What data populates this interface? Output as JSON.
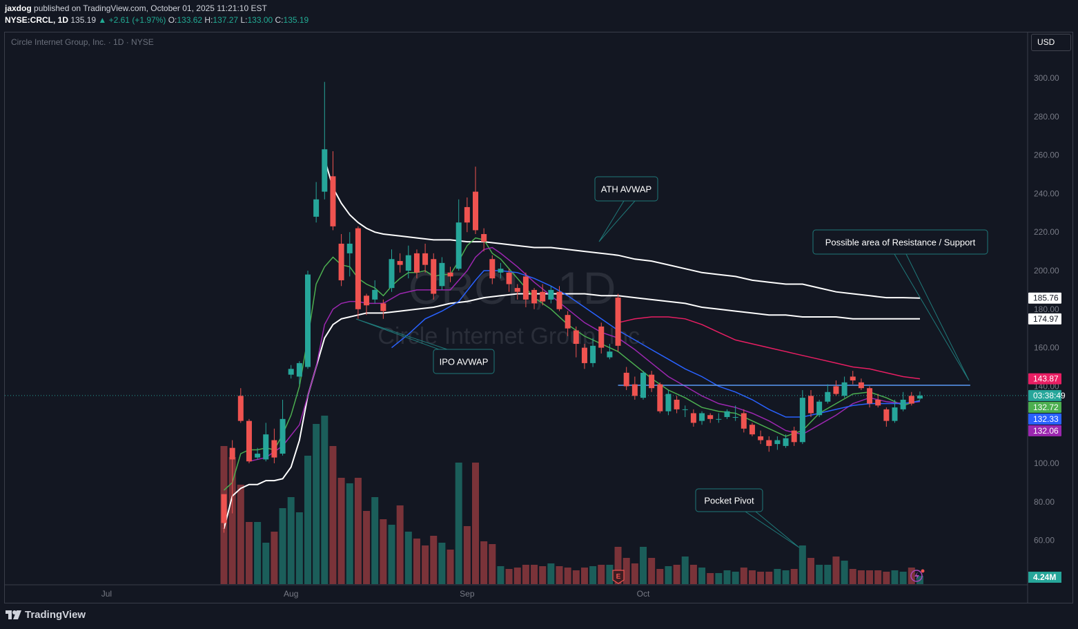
{
  "header": {
    "author": "jaxdog",
    "published_text": "published on TradingView.com, October 01, 2025 11:21:10 EST",
    "symbol": "NYSE:CRCL, 1D",
    "last": "135.19",
    "change": "▲ +2.61 (+1.97%)",
    "o_label": "O:",
    "o": "133.62",
    "h_label": "H:",
    "h": "137.27",
    "l_label": "L:",
    "l": "133.00",
    "c_label": "C:",
    "c": "135.19"
  },
  "legend": "Circle Internet Group, Inc. · 1D · NYSE",
  "currency_button": "USD",
  "watermark": {
    "symbol": "CRCL, 1D",
    "name": "Circle Internet Group, Inc."
  },
  "footer_brand": "TradingView",
  "colors": {
    "background": "#131722",
    "up": "#26a69a",
    "down": "#ef5350",
    "vol_up": "#1b5e5a",
    "vol_down": "#7a3339",
    "avwap": "#ffffff",
    "ema_green": "#4caf50",
    "ema_purple": "#9c27b0",
    "ema_blue": "#2962ff",
    "ma_red": "#e91e63",
    "resistance": "#5b9cf6"
  },
  "annotations": [
    {
      "text": "ATH AVWAP"
    },
    {
      "text": "Possible area of Resistance / Support"
    },
    {
      "text": "IPO AVWAP"
    },
    {
      "text": "Pocket Pivot"
    }
  ],
  "price_badges": [
    {
      "text": "185.76",
      "value": 185.76,
      "style": "white"
    },
    {
      "text": "174.97",
      "value": 174.97,
      "style": "white"
    },
    {
      "text": "143.87",
      "value": 143.87,
      "style": "red"
    },
    {
      "text": "03:38:49",
      "value": 135.19,
      "style": "teal"
    },
    {
      "text": "132.72",
      "value": 132.72,
      "style": "green"
    },
    {
      "text": "132.33",
      "value": 132.33,
      "style": "blue"
    },
    {
      "text": "132.06",
      "value": 132.06,
      "style": "purple"
    }
  ],
  "volume_badge": "4.24M",
  "chart_data": {
    "type": "candlestick",
    "title": "Circle Internet Group, Inc. · 1D · NYSE",
    "y_axis": {
      "ticks": [
        300,
        280,
        260,
        240,
        220,
        200,
        180,
        160,
        140,
        100,
        80,
        60
      ],
      "labels": [
        "300.00",
        "280.00",
        "260.00",
        "240.00",
        "220.00",
        "200.00",
        "180.00",
        "160.00",
        "140.00",
        "100.00",
        "80.00",
        "60.00"
      ],
      "range": [
        40,
        320
      ]
    },
    "x_axis": {
      "ticks": [
        {
          "label": "Jul",
          "index": 17
        },
        {
          "label": "Aug",
          "index": 39
        },
        {
          "label": "Sep",
          "index": 60
        },
        {
          "label": "Oct",
          "index": 81
        }
      ]
    },
    "candles": [
      [
        31,
        84.0,
        69.0,
        83.0,
        64.0,
        1.0
      ],
      [
        32,
        108.0,
        102.0,
        112.0,
        74.0,
        0.92
      ],
      [
        33,
        135.0,
        122.0,
        139.0,
        121.0,
        0.72
      ],
      [
        34,
        122.0,
        101.0,
        123.0,
        100.0,
        0.45
      ],
      [
        35,
        103.0,
        105.0,
        108.0,
        102.0,
        0.45
      ],
      [
        36,
        102.0,
        115.0,
        121.0,
        101.0,
        0.3
      ],
      [
        37,
        112.0,
        103.0,
        118.0,
        100.0,
        0.38
      ],
      [
        38,
        105.0,
        123.0,
        133.0,
        104.0,
        0.55
      ],
      [
        39,
        146.0,
        149.0,
        151.0,
        144.0,
        0.63
      ],
      [
        40,
        145.0,
        152.0,
        153.0,
        141.0,
        0.52
      ],
      [
        41,
        150.0,
        198.0,
        200.0,
        149.0,
        0.93
      ],
      [
        42,
        228.0,
        237.0,
        246.0,
        225.0,
        1.16
      ],
      [
        43,
        241.0,
        263.0,
        298.0,
        237.0,
        1.22
      ],
      [
        44,
        249.0,
        223.0,
        262.0,
        221.0,
        1.0
      ],
      [
        45,
        214.0,
        195.0,
        219.0,
        192.0,
        0.77
      ],
      [
        46,
        209.0,
        214.0,
        220.0,
        197.0,
        0.73
      ],
      [
        47,
        222.0,
        180.0,
        223.0,
        175.0,
        0.77
      ],
      [
        48,
        187.0,
        182.0,
        188.0,
        177.0,
        0.53
      ],
      [
        49,
        185.0,
        190.0,
        195.0,
        183.0,
        0.63
      ],
      [
        50,
        183.0,
        179.0,
        185.0,
        175.0,
        0.47
      ],
      [
        51,
        191.0,
        206.0,
        211.0,
        189.0,
        0.43
      ],
      [
        52,
        205.0,
        203.0,
        209.0,
        199.0,
        0.57
      ],
      [
        53,
        200.0,
        208.0,
        213.0,
        196.0,
        0.38
      ],
      [
        54,
        209.0,
        199.0,
        211.0,
        196.0,
        0.33
      ],
      [
        55,
        209.0,
        203.0,
        214.0,
        199.0,
        0.28
      ],
      [
        56,
        206.0,
        188.0,
        209.0,
        185.0,
        0.35
      ],
      [
        57,
        192.0,
        204.0,
        207.0,
        190.0,
        0.3
      ],
      [
        58,
        199.0,
        197.0,
        202.0,
        194.0,
        0.25
      ],
      [
        59,
        201.0,
        225.0,
        237.0,
        200.0,
        0.88
      ],
      [
        60,
        233.0,
        225.0,
        238.0,
        220.0,
        0.42
      ],
      [
        61,
        241.0,
        221.0,
        254.0,
        219.0,
        0.88
      ],
      [
        62,
        219.0,
        215.0,
        222.0,
        210.0,
        0.31
      ],
      [
        63,
        206.0,
        196.0,
        208.0,
        193.0,
        0.29
      ],
      [
        64,
        199.0,
        201.0,
        204.0,
        196.0,
        0.13
      ],
      [
        65,
        199.0,
        193.0,
        201.0,
        189.0,
        0.11
      ],
      [
        66,
        191.0,
        189.0,
        193.0,
        185.0,
        0.12
      ],
      [
        67,
        197.0,
        185.0,
        199.0,
        181.0,
        0.14
      ],
      [
        68,
        190.0,
        183.0,
        191.0,
        180.0,
        0.14
      ],
      [
        69,
        189.0,
        184.0,
        193.0,
        182.0,
        0.13
      ],
      [
        70,
        185.0,
        190.0,
        192.0,
        183.0,
        0.15
      ],
      [
        71,
        189.0,
        180.0,
        192.0,
        179.0,
        0.13
      ],
      [
        72,
        177.0,
        170.0,
        179.0,
        166.0,
        0.12
      ],
      [
        73,
        169.0,
        162.0,
        171.0,
        155.0,
        0.1
      ],
      [
        74,
        160.0,
        152.0,
        162.0,
        149.0,
        0.12
      ],
      [
        75,
        152.0,
        161.0,
        165.0,
        150.0,
        0.13
      ],
      [
        76,
        171.0,
        160.0,
        173.0,
        157.0,
        0.14
      ],
      [
        77,
        155.0,
        158.0,
        162.0,
        154.0,
        0.14
      ],
      [
        78,
        186.0,
        161.0,
        188.0,
        158.0,
        0.27
      ],
      [
        79,
        147.0,
        140.0,
        150.0,
        138.0,
        0.19
      ],
      [
        80,
        141.0,
        135.0,
        145.0,
        133.0,
        0.15
      ],
      [
        81,
        134.0,
        147.0,
        148.0,
        133.0,
        0.27
      ],
      [
        82,
        146.0,
        139.0,
        148.0,
        137.0,
        0.19
      ],
      [
        83,
        141.0,
        127.0,
        142.0,
        126.0,
        0.11
      ],
      [
        84,
        127.0,
        136.0,
        138.0,
        125.0,
        0.13
      ],
      [
        85,
        133.0,
        128.0,
        135.0,
        126.0,
        0.14
      ],
      [
        86,
        128.0,
        128.0,
        130.0,
        124.0,
        0.2
      ],
      [
        87,
        126.0,
        121.0,
        128.0,
        119.0,
        0.14
      ],
      [
        88,
        122.0,
        126.0,
        127.0,
        120.0,
        0.12
      ],
      [
        89,
        125.0,
        123.0,
        126.0,
        121.0,
        0.08
      ],
      [
        90,
        123.0,
        123.0,
        126.0,
        121.0,
        0.08
      ],
      [
        91,
        124.0,
        127.0,
        128.0,
        123.0,
        0.1
      ],
      [
        92,
        124.0,
        124.0,
        130.0,
        122.0,
        0.09
      ],
      [
        93,
        126.0,
        118.0,
        128.0,
        116.0,
        0.12
      ],
      [
        94,
        120.0,
        115.0,
        121.0,
        114.0,
        0.1
      ],
      [
        95,
        114.0,
        112.0,
        117.0,
        110.0,
        0.09
      ],
      [
        96,
        112.0,
        109.0,
        114.0,
        106.0,
        0.09
      ],
      [
        97,
        110.0,
        112.0,
        114.0,
        107.0,
        0.11
      ],
      [
        98,
        109.0,
        113.0,
        115.0,
        108.0,
        0.1
      ],
      [
        99,
        117.0,
        111.0,
        119.0,
        109.0,
        0.11
      ],
      [
        100,
        111.0,
        134.0,
        138.0,
        110.0,
        0.28
      ],
      [
        101,
        135.0,
        126.0,
        138.0,
        124.0,
        0.19
      ],
      [
        102,
        125.0,
        132.0,
        133.0,
        124.0,
        0.14
      ],
      [
        103,
        132.0,
        137.0,
        141.0,
        131.0,
        0.14
      ],
      [
        104,
        140.0,
        136.0,
        143.0,
        135.0,
        0.2
      ],
      [
        105,
        135.0,
        142.0,
        145.0,
        134.0,
        0.17
      ],
      [
        106,
        145.0,
        143.0,
        148.0,
        141.0,
        0.11
      ],
      [
        107,
        142.0,
        139.0,
        144.0,
        138.0,
        0.1
      ],
      [
        108,
        139.0,
        131.0,
        140.0,
        129.0,
        0.1
      ],
      [
        109,
        133.0,
        130.0,
        136.0,
        129.0,
        0.1
      ],
      [
        110,
        128.0,
        122.0,
        129.0,
        119.0,
        0.09
      ],
      [
        111,
        122.0,
        129.0,
        133.0,
        121.0,
        0.1
      ],
      [
        112,
        128.0,
        133.0,
        137.0,
        127.0,
        0.09
      ],
      [
        113,
        135.0,
        131.0,
        137.0,
        130.0,
        0.12
      ],
      [
        114,
        133.62,
        135.19,
        137.27,
        133.0,
        0.06
      ]
    ],
    "indicators": [
      {
        "name": "ATH AVWAP",
        "color": "#ffffff",
        "x": [
          43,
          44,
          45,
          46,
          47,
          48,
          49,
          50,
          52,
          54,
          56,
          58,
          60,
          62,
          64,
          66,
          68,
          70,
          72,
          74,
          76,
          78,
          80,
          82,
          84,
          86,
          88,
          90,
          92,
          94,
          96,
          98,
          100,
          102,
          104,
          106,
          108,
          110,
          112,
          114
        ],
        "y": [
          258,
          243,
          235,
          229,
          225,
          222,
          220,
          219,
          218,
          217,
          216,
          216,
          215,
          215,
          214,
          213,
          212,
          212,
          211,
          210,
          209,
          208,
          206,
          205,
          203,
          201,
          199,
          198,
          197,
          195,
          194,
          193,
          193,
          191,
          189,
          188,
          187,
          186,
          186,
          185.76
        ]
      },
      {
        "name": "IPO AVWAP",
        "color": "#ffffff",
        "x": [
          31,
          32,
          33,
          34,
          35,
          36,
          37,
          38,
          39,
          40,
          41,
          42,
          43,
          44,
          45,
          46,
          47,
          48,
          49,
          50,
          52,
          54,
          56,
          58,
          60,
          62,
          64,
          66,
          68,
          70,
          72,
          74,
          76,
          78,
          80,
          82,
          84,
          86,
          88,
          90,
          92,
          94,
          96,
          98,
          100,
          102,
          104,
          106,
          108,
          110,
          112,
          114
        ],
        "y": [
          66,
          83,
          87,
          89,
          89,
          91,
          91,
          92,
          98,
          112,
          135,
          150,
          165,
          172,
          175,
          176,
          177,
          178,
          178,
          178,
          179,
          180,
          181,
          183,
          184,
          186,
          187,
          188,
          188,
          188,
          188,
          188,
          187,
          187,
          186,
          185,
          184,
          183,
          181,
          180,
          179,
          178,
          177,
          177,
          176,
          176,
          176,
          175,
          175,
          175,
          175,
          174.97
        ]
      },
      {
        "name": "EMA green",
        "color": "#4caf50",
        "x": [
          31,
          32,
          33,
          34,
          35,
          36,
          37,
          38,
          39,
          40,
          41,
          42,
          43,
          44,
          45,
          46,
          47,
          48,
          49,
          50,
          51,
          52,
          53,
          54,
          55,
          56,
          57,
          58,
          59,
          60,
          61,
          62,
          63,
          64,
          65,
          66,
          67,
          68,
          70,
          72,
          74,
          76,
          78,
          80,
          82,
          84,
          86,
          88,
          90,
          92,
          94,
          96,
          98,
          100,
          102,
          104,
          106,
          108,
          110,
          112,
          114
        ],
        "y": [
          86,
          90,
          105,
          107,
          107,
          108,
          107,
          115,
          125,
          140,
          165,
          193,
          202,
          207,
          203,
          202,
          196,
          193,
          191,
          187,
          192,
          196,
          199,
          199,
          200,
          197,
          198,
          198,
          205,
          213,
          217,
          216,
          209,
          206,
          201,
          196,
          191,
          186,
          180,
          172,
          166,
          162,
          158,
          151,
          144,
          138,
          134,
          129,
          127,
          126,
          122,
          118,
          114,
          117,
          126,
          131,
          136,
          137,
          134,
          130,
          132.72
        ]
      },
      {
        "name": "EMA purple",
        "color": "#9c27b0",
        "x": [
          34,
          36,
          38,
          40,
          42,
          43,
          44,
          45,
          46,
          47,
          48,
          50,
          52,
          54,
          56,
          58,
          60,
          61,
          62,
          63,
          64,
          66,
          68,
          70,
          72,
          74,
          76,
          78,
          80,
          82,
          84,
          86,
          88,
          90,
          92,
          94,
          96,
          98,
          100,
          102,
          104,
          106,
          108,
          110,
          112,
          114
        ],
        "y": [
          101,
          103,
          109,
          120,
          150,
          172,
          180,
          183,
          184,
          184,
          183,
          183,
          188,
          190,
          190,
          190,
          200,
          207,
          211,
          212,
          209,
          202,
          194,
          187,
          180,
          173,
          168,
          165,
          159,
          152,
          145,
          140,
          135,
          131,
          129,
          126,
          122,
          117,
          115,
          120,
          125,
          131,
          134,
          132,
          131,
          132.06
        ]
      },
      {
        "name": "EMA blue",
        "color": "#2962ff",
        "x": [
          51,
          53,
          55,
          57,
          59,
          61,
          62,
          64,
          66,
          68,
          70,
          72,
          74,
          76,
          78,
          80,
          82,
          84,
          86,
          88,
          90,
          92,
          94,
          96,
          98,
          100,
          102,
          104,
          106,
          108,
          110,
          112,
          114
        ],
        "y": [
          160,
          167,
          175,
          179,
          184,
          195,
          200,
          200,
          199,
          196,
          192,
          187,
          181,
          175,
          169,
          164,
          159,
          154,
          149,
          145,
          140,
          137,
          133,
          128,
          124,
          124,
          126,
          128,
          130,
          131,
          131,
          131,
          132.33
        ]
      },
      {
        "name": "MA red",
        "color": "#e91e63",
        "x": [
          78,
          80,
          82,
          84,
          86,
          88,
          90,
          92,
          94,
          96,
          98,
          100,
          102,
          104,
          106,
          108,
          110,
          112,
          114
        ],
        "y": [
          173,
          175,
          176,
          176,
          175,
          172,
          168,
          164,
          162,
          160,
          158,
          156,
          154,
          152,
          150,
          149,
          147,
          145,
          143.87
        ]
      }
    ],
    "horizontal_lines": [
      {
        "name": "Resistance / Support",
        "value": 140.5,
        "from_index": 78,
        "to_index": 120,
        "color": "#5b9cf6"
      },
      {
        "name": "Last price",
        "value": 135.19,
        "from_index": 0,
        "to_index": 134,
        "color": "#26a69a",
        "style": "dotted"
      }
    ]
  }
}
